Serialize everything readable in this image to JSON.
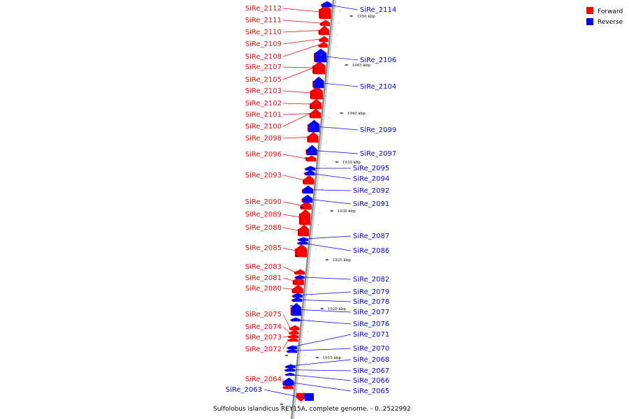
{
  "legend": {
    "forward": {
      "label": "Forward",
      "color": "#ff0000"
    },
    "reverse": {
      "label": "Reverse",
      "color": "#0000ff"
    }
  },
  "caption": "Sulfolobus islandicus REY15A, complete genome. - 0..2522992",
  "kbp_ticks": [
    "1950 kbp",
    "1945 kbp",
    "1940 kbp",
    "1935 kbp",
    "1930 kbp",
    "1925 kbp",
    "1920 kbp",
    "1915 kbp"
  ],
  "forward_genes": [
    "SiRe_2112",
    "SiRe_2111",
    "SiRe_2110",
    "SiRe_2109",
    "SiRe_2108",
    "SiRe_2107",
    "SiRe_2105",
    "SiRe_2103",
    "SiRe_2102",
    "SiRe_2101",
    "SiRe_2100",
    "SiRe_2098",
    "SiRe_2096",
    "SiRe_2093",
    "SiRe_2090",
    "SiRe_2089",
    "SiRe_2088",
    "SiRe_2085",
    "SiRe_2083",
    "SiRe_2081",
    "SiRe_2080",
    "SiRe_2075",
    "SiRe_2074",
    "SiRe_2073",
    "SiRe_2072",
    "SiRe_2064"
  ],
  "reverse_genes": [
    "SiRe_2114",
    "SiRe_2106",
    "SiRe_2104",
    "SiRe_2099",
    "SiRe_2097",
    "SiRe_2095",
    "SiRe_2094",
    "SiRe_2092",
    "SiRe_2091",
    "SiRe_2087",
    "SiRe_2086",
    "SiRe_2082",
    "SiRe_2079",
    "SiRe_2078",
    "SiRe_2077",
    "SiRe_2076",
    "SiRe_2071",
    "SiRe_2070",
    "SiRe_2068",
    "SiRe_2067",
    "SiRe_2066",
    "SiRe_2065",
    "SiRe_2063"
  ]
}
